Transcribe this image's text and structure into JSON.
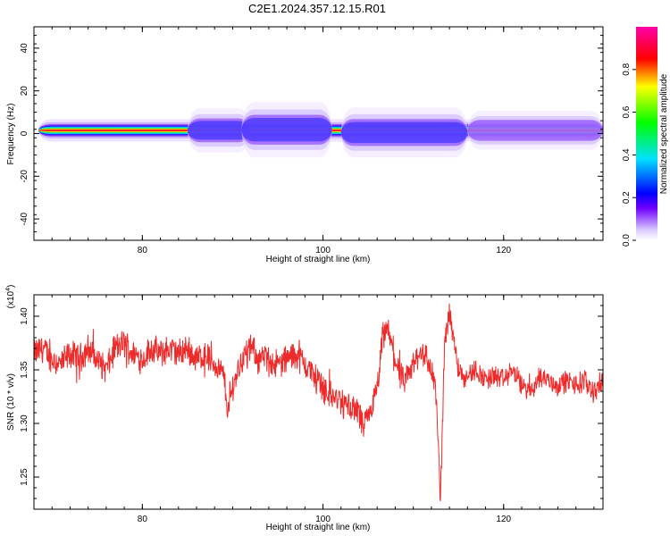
{
  "title": "C2E1.2024.357.12.15.R01",
  "chart_data": [
    {
      "type": "heatmap",
      "xlabel": "Height of straight line (km)",
      "ylabel": "Frequency (Hz)",
      "xlim": [
        68,
        131
      ],
      "ylim": [
        -50,
        50
      ],
      "xticks": [
        80,
        100,
        120
      ],
      "yticks": [
        40,
        20,
        0,
        -20,
        -40
      ],
      "colorbar": {
        "label": "Normalized spectral amplitude",
        "range": [
          0,
          1
        ],
        "ticks": [
          "0.0",
          "0.2",
          "0.4",
          "0.6",
          "0.8"
        ]
      },
      "bands": [
        {
          "x0": 68.5,
          "x1": 131,
          "y_center": 1.5,
          "half_width": 2.0,
          "level": 0.9
        },
        {
          "x0": 85,
          "x1": 92,
          "y_center": 1.5,
          "half_width": 4.0,
          "level": 0.25
        },
        {
          "x0": 91,
          "x1": 101,
          "y_center": 1.8,
          "half_width": 5.0,
          "level": 0.25
        },
        {
          "x0": 102,
          "x1": 116,
          "y_center": 0.5,
          "half_width": 4.5,
          "level": 0.3
        },
        {
          "x0": 116,
          "x1": 131,
          "y_center": 1.5,
          "half_width": 3.5,
          "level": 0.2
        }
      ]
    },
    {
      "type": "line",
      "xlabel": "Height of straight line (km)",
      "ylabel": "SNR (10 * v/v)",
      "yscale_note": "(x10",
      "yscale_exp": "4",
      "xlim": [
        68,
        131
      ],
      "ylim": [
        1.22,
        1.42
      ],
      "xticks": [
        80,
        100,
        120
      ],
      "yticks": [
        "1.40",
        "1.35",
        "1.30",
        "1.25"
      ],
      "ytick_values": [
        1.4,
        1.35,
        1.3,
        1.25
      ],
      "color": "#ee2b2b",
      "x": [
        68,
        69,
        70,
        71,
        72,
        73,
        74,
        75,
        76,
        77,
        78,
        79,
        80,
        81,
        82,
        83,
        84,
        85,
        86,
        87,
        88,
        89,
        89.5,
        90,
        91,
        92,
        93,
        94,
        95,
        96,
        97,
        98,
        99,
        100,
        101,
        102,
        103,
        104,
        104.5,
        105,
        106,
        106.5,
        107,
        107.5,
        108,
        109,
        110,
        111,
        112,
        112.5,
        113,
        113.5,
        114,
        115,
        116,
        117,
        118,
        119,
        120,
        121,
        122,
        123,
        124,
        125,
        126,
        127,
        128,
        129,
        130,
        131
      ],
      "y": [
        1.365,
        1.37,
        1.36,
        1.355,
        1.365,
        1.36,
        1.37,
        1.36,
        1.35,
        1.37,
        1.375,
        1.365,
        1.36,
        1.37,
        1.365,
        1.37,
        1.365,
        1.37,
        1.36,
        1.365,
        1.355,
        1.345,
        1.31,
        1.335,
        1.36,
        1.37,
        1.36,
        1.36,
        1.355,
        1.36,
        1.365,
        1.355,
        1.345,
        1.335,
        1.325,
        1.32,
        1.315,
        1.31,
        1.295,
        1.305,
        1.33,
        1.37,
        1.39,
        1.375,
        1.36,
        1.335,
        1.355,
        1.37,
        1.35,
        1.33,
        1.23,
        1.38,
        1.405,
        1.35,
        1.345,
        1.35,
        1.34,
        1.345,
        1.34,
        1.35,
        1.335,
        1.33,
        1.345,
        1.34,
        1.335,
        1.34,
        1.335,
        1.34,
        1.33,
        1.34
      ]
    }
  ]
}
